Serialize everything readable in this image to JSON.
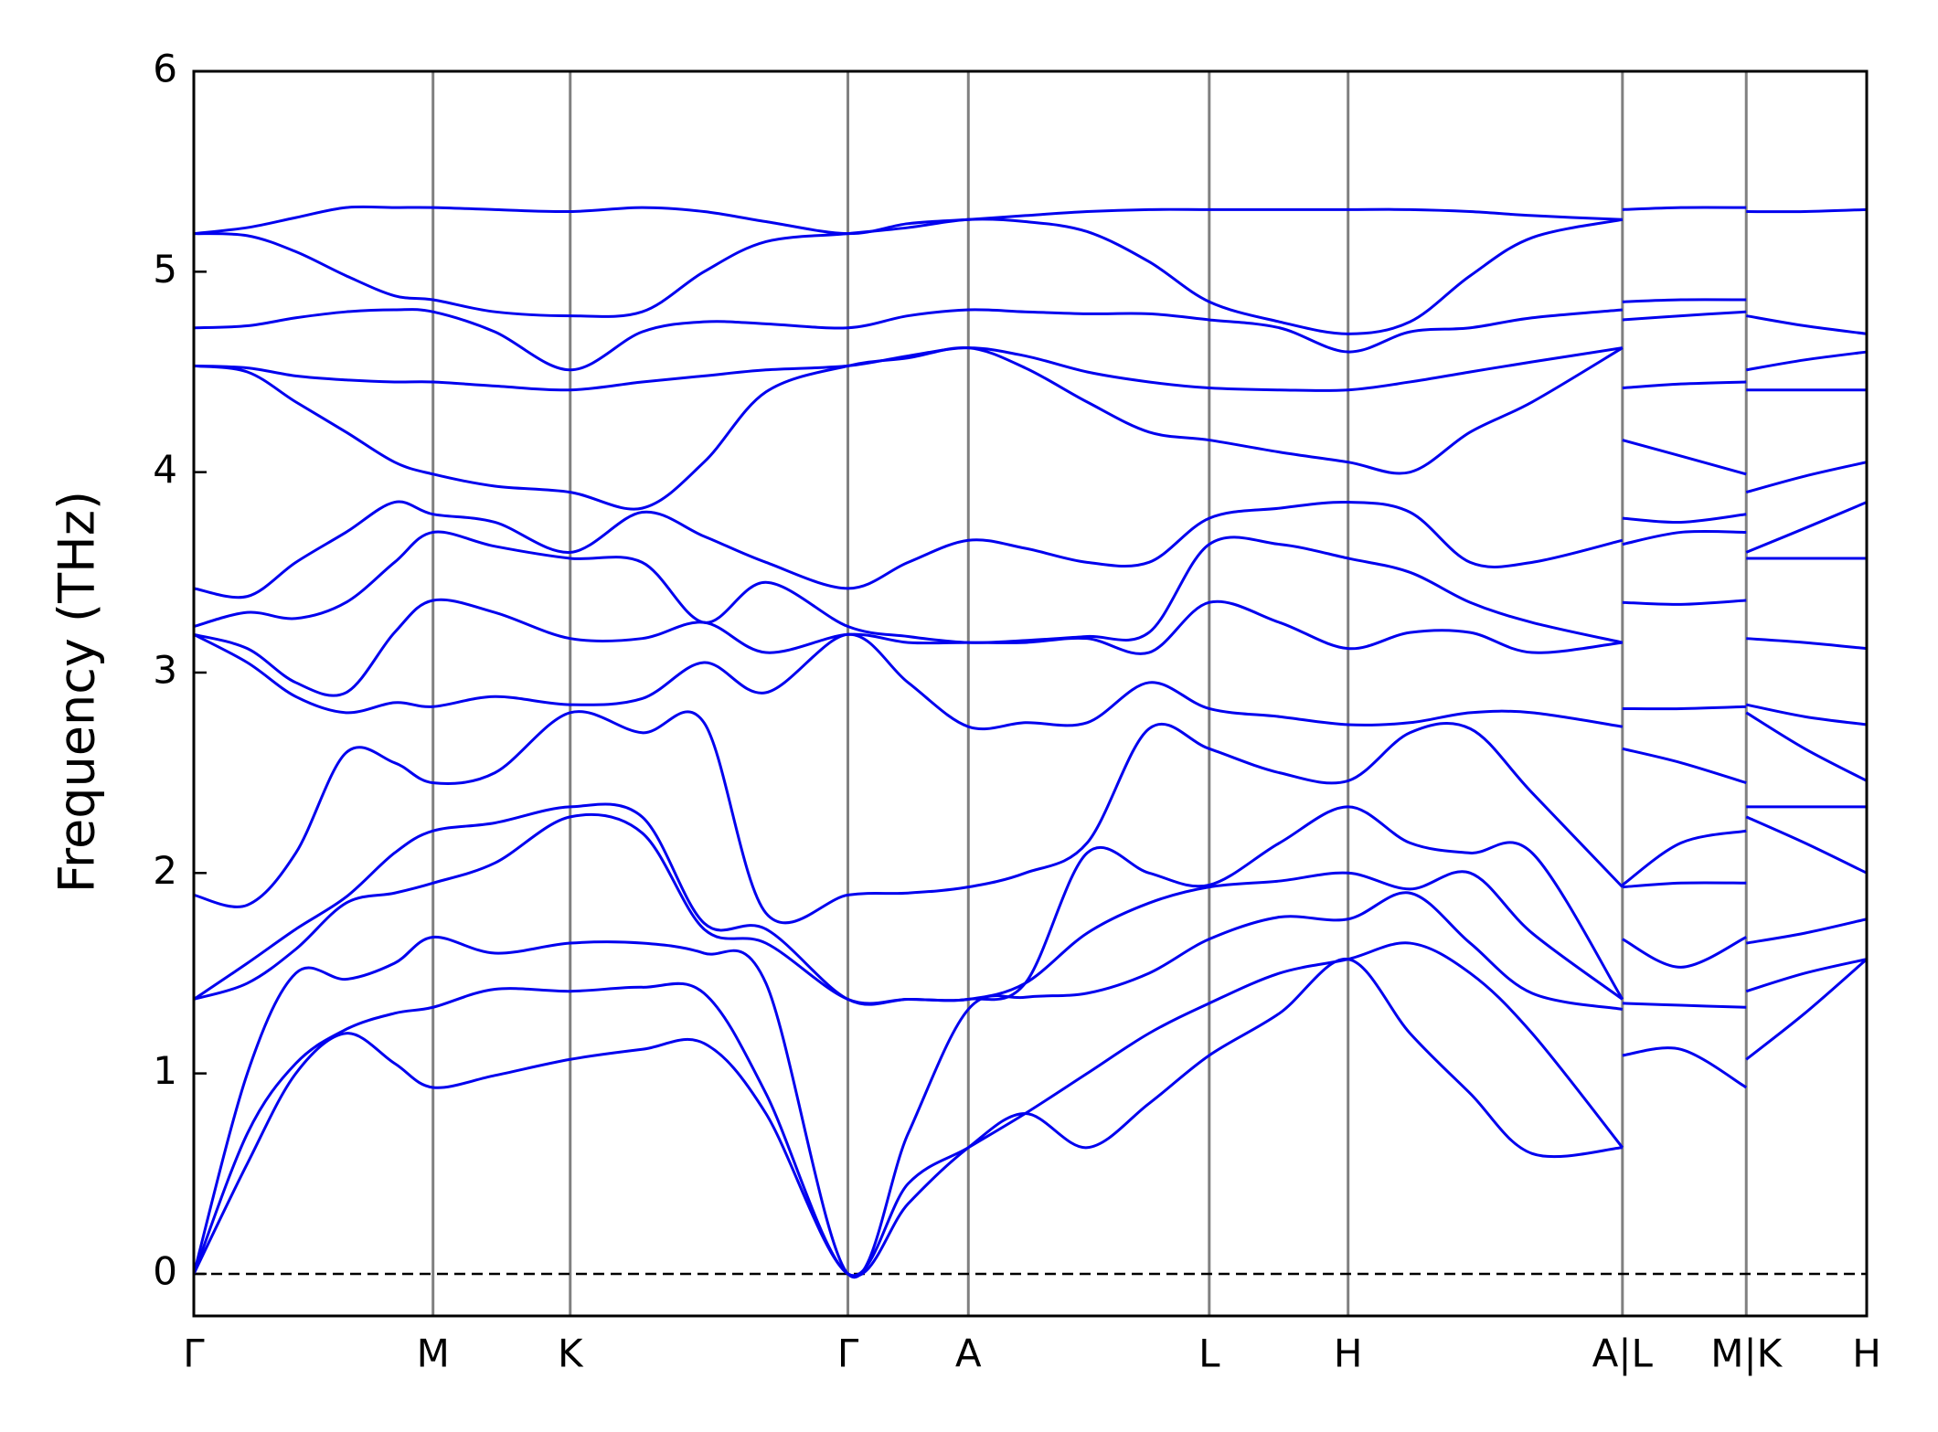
{
  "chart_data": {
    "type": "line",
    "y_label": "Frequency (THz)",
    "ylim": [
      -0.21,
      6
    ],
    "yticks": [
      0,
      1,
      2,
      3,
      4,
      5,
      6
    ],
    "xlim": [
      0,
      1
    ],
    "xticks": [
      {
        "value": 0,
        "label": "Γ"
      },
      {
        "value": 0.143,
        "label": "M"
      },
      {
        "value": 0.225,
        "label": "K"
      },
      {
        "value": 0.391,
        "label": "Γ"
      },
      {
        "value": 0.463,
        "label": "A"
      },
      {
        "value": 0.607,
        "label": "L"
      },
      {
        "value": 0.69,
        "label": "H"
      },
      {
        "value": 0.854,
        "label": "A|L"
      },
      {
        "value": 0.928,
        "label": "M|K"
      },
      {
        "value": 1.0,
        "label": "H"
      }
    ],
    "vertical_lines": true,
    "zero_line": true,
    "x": [
      0,
      0.032,
      0.061,
      0.091,
      0.12,
      0.143,
      0.18,
      0.225,
      0.268,
      0.305,
      0.342,
      0.391,
      0.427,
      0.463,
      0.497,
      0.534,
      0.571,
      0.607,
      0.649,
      0.69,
      0.727,
      0.763,
      0.8,
      0.854,
      0.854,
      0.854,
      0.889,
      0.928,
      0.928,
      0.928,
      0.963,
      1.0
    ],
    "series": [
      {
        "color": "#0000ee",
        "values": [
          0,
          0.55,
          1.0,
          1.2,
          1.05,
          0.93,
          0.99,
          1.07,
          1.12,
          1.15,
          0.8,
          0,
          0.35,
          0.63,
          0.8,
          0.63,
          0.85,
          1.09,
          1.3,
          1.57,
          1.2,
          0.9,
          0.6,
          0.63,
          null,
          1.09,
          1.12,
          0.93,
          null,
          1.07,
          1.3,
          1.57
        ]
      },
      {
        "color": "#0000ee",
        "values": [
          0,
          0.7,
          1.05,
          1.22,
          1.3,
          1.33,
          1.42,
          1.41,
          1.43,
          1.4,
          0.9,
          0,
          0.45,
          0.63,
          0.8,
          1.0,
          1.2,
          1.35,
          1.5,
          1.57,
          1.65,
          1.5,
          1.2,
          0.63,
          null,
          1.35,
          1.34,
          1.33,
          null,
          1.41,
          1.5,
          1.57
        ]
      },
      {
        "color": "#0000ee",
        "values": [
          0,
          1.0,
          1.5,
          1.47,
          1.55,
          1.68,
          1.6,
          1.65,
          1.65,
          1.6,
          1.45,
          0,
          0.7,
          1.32,
          1.38,
          1.4,
          1.5,
          1.67,
          1.78,
          1.77,
          1.9,
          1.65,
          1.4,
          1.32,
          null,
          1.67,
          1.53,
          1.68,
          null,
          1.65,
          1.7,
          1.77
        ]
      },
      {
        "color": "#0000ee",
        "values": [
          1.37,
          1.45,
          1.62,
          1.85,
          1.9,
          1.95,
          2.05,
          2.28,
          2.2,
          1.72,
          1.65,
          1.37,
          1.37,
          1.37,
          1.45,
          1.7,
          1.85,
          1.93,
          1.96,
          2.0,
          1.92,
          2.0,
          1.7,
          1.37,
          null,
          1.93,
          1.95,
          1.95,
          null,
          2.28,
          2.15,
          2.0
        ]
      },
      {
        "color": "#0000ee",
        "values": [
          1.37,
          1.55,
          1.72,
          1.88,
          2.1,
          2.21,
          2.25,
          2.33,
          2.28,
          1.75,
          1.72,
          1.37,
          1.37,
          1.37,
          1.45,
          2.1,
          2.0,
          1.94,
          2.15,
          2.33,
          2.15,
          2.1,
          2.1,
          1.37,
          null,
          1.94,
          2.15,
          2.21,
          null,
          2.33,
          2.33,
          2.33
        ]
      },
      {
        "color": "#0000ee",
        "values": [
          1.89,
          1.84,
          2.1,
          2.6,
          2.55,
          2.45,
          2.5,
          2.8,
          2.7,
          2.75,
          1.8,
          1.89,
          1.9,
          1.93,
          2.0,
          2.15,
          2.72,
          2.62,
          2.5,
          2.46,
          2.7,
          2.72,
          2.4,
          1.93,
          null,
          2.62,
          2.55,
          2.45,
          null,
          2.8,
          2.62,
          2.46
        ]
      },
      {
        "color": "#0000ee",
        "values": [
          3.19,
          3.05,
          2.88,
          2.8,
          2.85,
          2.83,
          2.88,
          2.84,
          2.87,
          3.05,
          2.9,
          3.19,
          2.95,
          2.73,
          2.75,
          2.75,
          2.95,
          2.82,
          2.78,
          2.74,
          2.75,
          2.8,
          2.8,
          2.73,
          null,
          2.82,
          2.82,
          2.83,
          null,
          2.84,
          2.78,
          2.74
        ]
      },
      {
        "color": "#0000ee",
        "values": [
          3.19,
          3.12,
          2.95,
          2.9,
          3.2,
          3.36,
          3.3,
          3.17,
          3.17,
          3.25,
          3.1,
          3.19,
          3.15,
          3.15,
          3.15,
          3.17,
          3.1,
          3.35,
          3.25,
          3.12,
          3.2,
          3.2,
          3.1,
          3.15,
          null,
          3.35,
          3.34,
          3.36,
          null,
          3.17,
          3.15,
          3.12
        ]
      },
      {
        "color": "#0000ee",
        "values": [
          3.23,
          3.3,
          3.27,
          3.35,
          3.55,
          3.7,
          3.63,
          3.57,
          3.55,
          3.25,
          3.45,
          3.23,
          3.18,
          3.15,
          3.16,
          3.18,
          3.2,
          3.64,
          3.64,
          3.57,
          3.5,
          3.35,
          3.25,
          3.15,
          null,
          3.64,
          3.7,
          3.7,
          null,
          3.57,
          3.57,
          3.57
        ]
      },
      {
        "color": "#0000ee",
        "values": [
          3.42,
          3.38,
          3.55,
          3.7,
          3.85,
          3.79,
          3.75,
          3.6,
          3.8,
          3.68,
          3.55,
          3.42,
          3.55,
          3.66,
          3.62,
          3.55,
          3.55,
          3.77,
          3.82,
          3.85,
          3.8,
          3.55,
          3.55,
          3.66,
          null,
          3.77,
          3.75,
          3.79,
          null,
          3.6,
          3.72,
          3.85
        ]
      },
      {
        "color": "#0000ee",
        "values": [
          4.53,
          4.5,
          4.35,
          4.2,
          4.05,
          3.99,
          3.93,
          3.9,
          3.82,
          4.05,
          4.4,
          4.53,
          4.57,
          4.62,
          4.52,
          4.35,
          4.2,
          4.16,
          4.1,
          4.05,
          4.0,
          4.2,
          4.35,
          4.62,
          null,
          4.16,
          4.08,
          3.99,
          null,
          3.9,
          3.98,
          4.05
        ]
      },
      {
        "color": "#0000ee",
        "values": [
          4.53,
          4.52,
          4.48,
          4.46,
          4.45,
          4.45,
          4.43,
          4.41,
          4.45,
          4.48,
          4.51,
          4.53,
          4.58,
          4.62,
          4.58,
          4.5,
          4.45,
          4.42,
          4.41,
          4.41,
          4.45,
          4.5,
          4.55,
          4.62,
          null,
          4.42,
          4.44,
          4.45,
          null,
          4.41,
          4.41,
          4.41
        ]
      },
      {
        "color": "#0000ee",
        "values": [
          4.72,
          4.73,
          4.77,
          4.8,
          4.81,
          4.8,
          4.7,
          4.51,
          4.7,
          4.75,
          4.74,
          4.72,
          4.78,
          4.81,
          4.8,
          4.79,
          4.79,
          4.76,
          4.72,
          4.6,
          4.7,
          4.72,
          4.77,
          4.81,
          null,
          4.76,
          4.78,
          4.8,
          null,
          4.51,
          4.56,
          4.6
        ]
      },
      {
        "color": "#0000ee",
        "values": [
          5.19,
          5.18,
          5.1,
          4.98,
          4.88,
          4.86,
          4.8,
          4.78,
          4.8,
          5.0,
          5.15,
          5.19,
          5.22,
          5.26,
          5.25,
          5.2,
          5.05,
          4.85,
          4.75,
          4.69,
          4.75,
          4.98,
          5.17,
          5.26,
          null,
          4.85,
          4.86,
          4.86,
          null,
          4.78,
          4.73,
          4.69
        ]
      },
      {
        "color": "#0000ee",
        "values": [
          5.19,
          5.22,
          5.27,
          5.32,
          5.32,
          5.32,
          5.31,
          5.3,
          5.32,
          5.3,
          5.25,
          5.19,
          5.24,
          5.26,
          5.28,
          5.3,
          5.31,
          5.31,
          5.31,
          5.31,
          5.31,
          5.3,
          5.28,
          5.26,
          null,
          5.31,
          5.32,
          5.32,
          null,
          5.3,
          5.3,
          5.31
        ]
      }
    ]
  }
}
